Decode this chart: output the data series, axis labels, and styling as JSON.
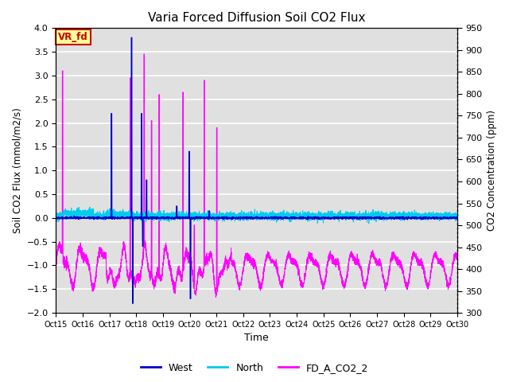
{
  "title": "Varia Forced Diffusion Soil CO2 Flux",
  "xlabel": "Time",
  "ylabel_left": "Soil CO2 Flux (mmol/m2/s)",
  "ylabel_right": "CO2 Concentration (ppm)",
  "ylim_left": [
    -2.0,
    4.0
  ],
  "ylim_right": [
    300,
    950
  ],
  "xlim": [
    0,
    16
  ],
  "xtick_labels": [
    "Oct 15",
    "Oct 16",
    "Oct 17",
    "Oct 18",
    "Oct 19",
    "Oct 20",
    "Oct 21",
    "Oct 22",
    "Oct 23",
    "Oct 24",
    "Oct 25",
    "Oct 26",
    "Oct 27",
    "Oct 28",
    "Oct 29",
    "Oct 30"
  ],
  "bg_color": "#e0e0e0",
  "west_color": "#0000cc",
  "north_color": "#00ccee",
  "fd_co2_color": "#ff00ff",
  "label_box_facecolor": "#ffff99",
  "label_box_edgecolor": "#cc0000",
  "label_box_text": "VR_fd",
  "label_box_text_color": "#cc0000",
  "legend_labels": [
    "West",
    "North",
    "FD_A_CO2_2"
  ],
  "right_yticks": [
    300,
    350,
    400,
    450,
    500,
    550,
    600,
    650,
    700,
    750,
    800,
    850,
    900,
    950
  ],
  "left_yticks": [
    -2.0,
    -1.5,
    -1.0,
    -0.5,
    0.0,
    0.5,
    1.0,
    1.5,
    2.0,
    2.5,
    3.0,
    3.5,
    4.0
  ]
}
